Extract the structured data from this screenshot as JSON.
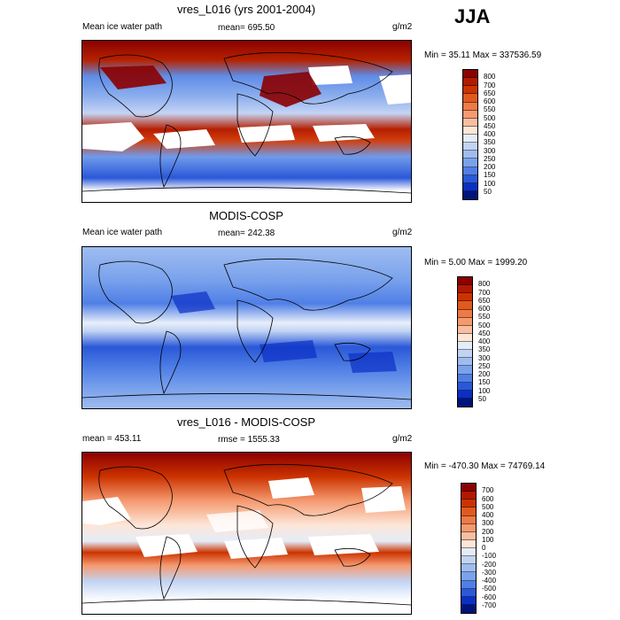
{
  "season": "JJA",
  "panels": [
    {
      "title": "vres_L016 (yrs 2001-2004)",
      "left_label": "Mean ice water path",
      "center_label": "mean= 695.50",
      "units": "g/m2",
      "minmax": "Min =  35.11 Max = 337536.59",
      "colorbar": {
        "ticks": [
          "800",
          "700",
          "650",
          "600",
          "550",
          "500",
          "450",
          "400",
          "350",
          "300",
          "250",
          "200",
          "150",
          "100",
          "50"
        ],
        "colors": [
          "#8b0000",
          "#b11900",
          "#cc3300",
          "#e05a1f",
          "#ee7a47",
          "#f59a70",
          "#f9bea0",
          "#fde6d8",
          "#e4ecf8",
          "#c2d4f4",
          "#9fbcf0",
          "#7aa2ec",
          "#4f7fe6",
          "#2a58d8",
          "#0b2fc4",
          "#00137a"
        ]
      }
    },
    {
      "title": "MODIS-COSP",
      "left_label": "Mean ice water path",
      "center_label": "mean= 242.38",
      "units": "g/m2",
      "minmax": "Min =   5.00 Max = 1999.20",
      "colorbar": {
        "ticks": [
          "800",
          "700",
          "650",
          "600",
          "550",
          "500",
          "450",
          "400",
          "350",
          "300",
          "250",
          "200",
          "150",
          "100",
          "50"
        ],
        "colors": [
          "#8b0000",
          "#b11900",
          "#cc3300",
          "#e05a1f",
          "#ee7a47",
          "#f59a70",
          "#f9bea0",
          "#fde6d8",
          "#e4ecf8",
          "#c2d4f4",
          "#9fbcf0",
          "#7aa2ec",
          "#4f7fe6",
          "#2a58d8",
          "#0b2fc4",
          "#00137a"
        ]
      }
    },
    {
      "title": "vres_L016 - MODIS-COSP",
      "left_label": "mean = 453.11",
      "center_label": "rmse = 1555.33",
      "units": "g/m2",
      "minmax": "Min = -470.30 Max = 74769.14",
      "colorbar": {
        "ticks": [
          "700",
          "600",
          "500",
          "400",
          "300",
          "200",
          "100",
          "0",
          "-100",
          "-200",
          "-300",
          "-400",
          "-500",
          "-600",
          "-700"
        ],
        "colors": [
          "#8b0000",
          "#b11900",
          "#cc3300",
          "#e05a1f",
          "#ee7a47",
          "#f59a70",
          "#f9bea0",
          "#fde6d8",
          "#e4ecf8",
          "#c2d4f4",
          "#9fbcf0",
          "#7aa2ec",
          "#4f7fe6",
          "#2a58d8",
          "#0b2fc4",
          "#00137a"
        ]
      }
    }
  ]
}
